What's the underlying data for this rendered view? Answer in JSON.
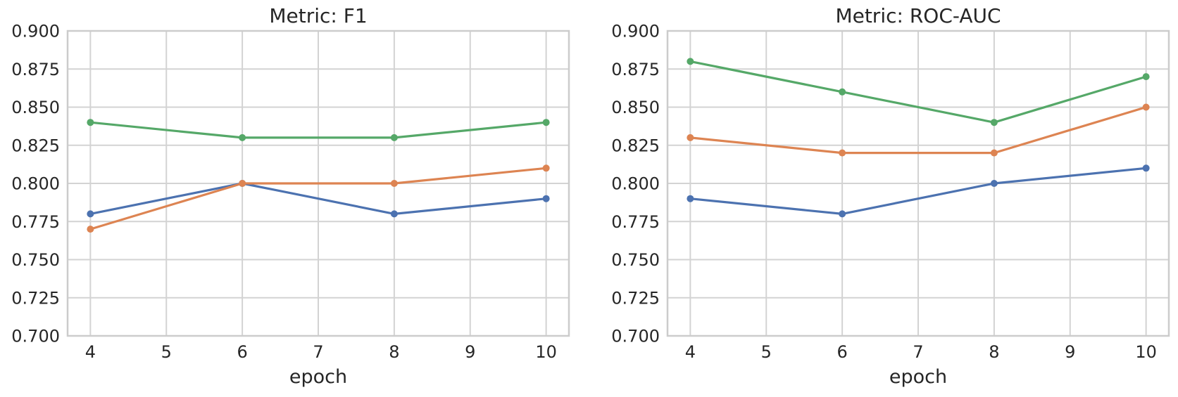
{
  "figure": {
    "background": "#ffffff",
    "grid_color": "#d3d3d3",
    "spine_color": "#cccccc",
    "text_color": "#262626"
  },
  "chart_data": [
    {
      "type": "line",
      "title": "Metric: F1",
      "xlabel": "epoch",
      "ylabel": "",
      "x": [
        4,
        6,
        8,
        10
      ],
      "xticks": [
        4,
        5,
        6,
        7,
        8,
        9,
        10
      ],
      "yticks": [
        "0.700",
        "0.725",
        "0.750",
        "0.775",
        "0.800",
        "0.825",
        "0.850",
        "0.875",
        "0.900"
      ],
      "xlim": [
        3.7,
        10.3
      ],
      "ylim": [
        0.7,
        0.9
      ],
      "grid": true,
      "legend_position": "none",
      "series": [
        {
          "name": "series-blue",
          "color": "#4C72B0",
          "values": [
            0.78,
            0.8,
            0.78,
            0.79
          ]
        },
        {
          "name": "series-orange",
          "color": "#DD8452",
          "values": [
            0.77,
            0.8,
            0.8,
            0.81
          ]
        },
        {
          "name": "series-green",
          "color": "#55A868",
          "values": [
            0.84,
            0.83,
            0.83,
            0.84
          ]
        }
      ]
    },
    {
      "type": "line",
      "title": "Metric: ROC-AUC",
      "xlabel": "epoch",
      "ylabel": "",
      "x": [
        4,
        6,
        8,
        10
      ],
      "xticks": [
        4,
        5,
        6,
        7,
        8,
        9,
        10
      ],
      "yticks": [
        "0.700",
        "0.725",
        "0.750",
        "0.775",
        "0.800",
        "0.825",
        "0.850",
        "0.875",
        "0.900"
      ],
      "xlim": [
        3.7,
        10.3
      ],
      "ylim": [
        0.7,
        0.9
      ],
      "grid": true,
      "legend_position": "none",
      "series": [
        {
          "name": "series-blue",
          "color": "#4C72B0",
          "values": [
            0.79,
            0.78,
            0.8,
            0.81
          ]
        },
        {
          "name": "series-orange",
          "color": "#DD8452",
          "values": [
            0.83,
            0.82,
            0.82,
            0.85
          ]
        },
        {
          "name": "series-green",
          "color": "#55A868",
          "values": [
            0.88,
            0.86,
            0.84,
            0.87
          ]
        }
      ]
    }
  ]
}
